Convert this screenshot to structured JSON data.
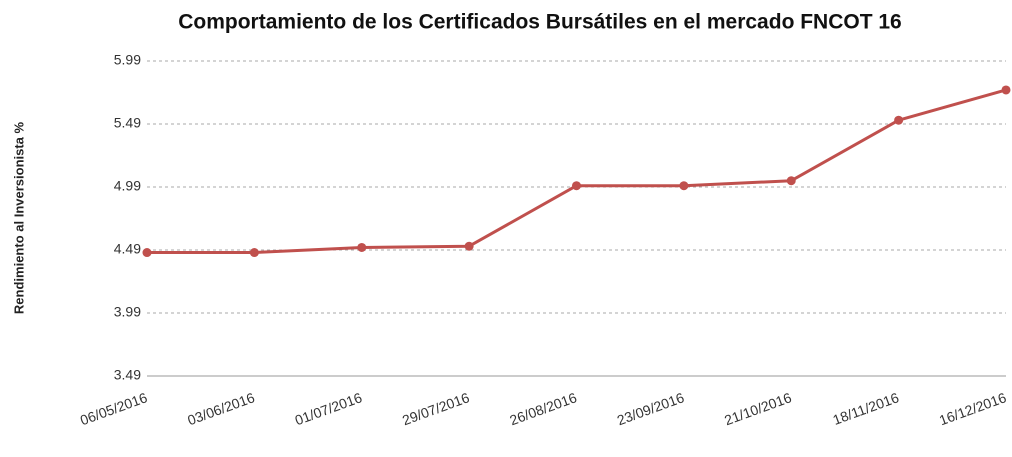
{
  "chart_data": {
    "type": "line",
    "title": "Comportamiento de los Certificados Bursátiles en el mercado FNCOT 16",
    "y_label": "Rendimiento al Inversionista %",
    "categories": [
      "06/05/2016",
      "03/06/2016",
      "01/07/2016",
      "29/07/2016",
      "26/08/2016",
      "23/09/2016",
      "21/10/2016",
      "18/11/2016",
      "16/12/2016"
    ],
    "series": [
      {
        "name": "Rendimiento al Inversionista %",
        "color": "#c0504d",
        "values": [
          4.47,
          4.47,
          4.51,
          4.52,
          5.0,
          5.0,
          5.04,
          5.52,
          5.76
        ]
      }
    ],
    "ylim": [
      3.49,
      5.99
    ],
    "yticks": [
      3.49,
      3.99,
      4.49,
      4.99,
      5.49,
      5.99
    ],
    "grid": true
  }
}
